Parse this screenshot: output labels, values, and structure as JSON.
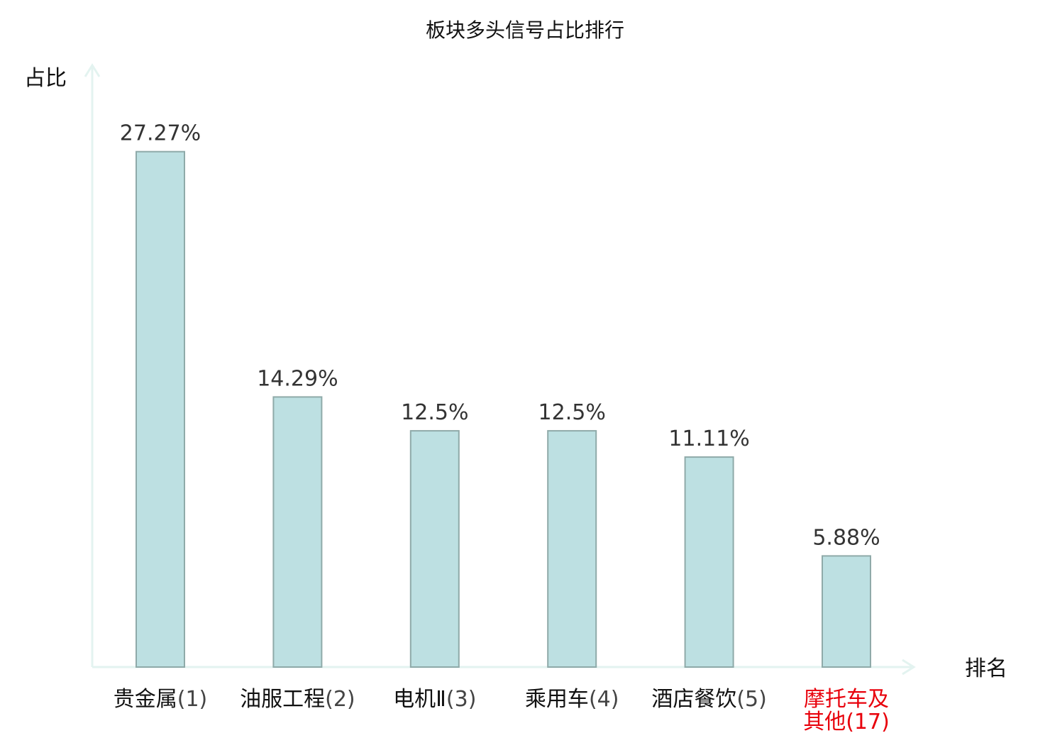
{
  "chart_data": {
    "type": "bar",
    "title": "板块多头信号占比排行",
    "ylabel": "占比",
    "xlabel": "排名",
    "categories": [
      "贵金属(1)",
      "油服工程(2)",
      "电机Ⅱ(3)",
      "乘用车(4)",
      "酒店餐饮(5)",
      "摩托车及其他(17)"
    ],
    "category_parts": [
      {
        "name_lines": [
          "贵金属"
        ],
        "rank": "(1)",
        "highlight": false
      },
      {
        "name_lines": [
          "油服工程"
        ],
        "rank": "(2)",
        "highlight": false
      },
      {
        "name_lines": [
          "电机Ⅱ"
        ],
        "rank": "(3)",
        "highlight": false
      },
      {
        "name_lines": [
          "乘用车"
        ],
        "rank": "(4)",
        "highlight": false
      },
      {
        "name_lines": [
          "酒店餐饮"
        ],
        "rank": "(5)",
        "highlight": false
      },
      {
        "name_lines": [
          "摩托车及",
          "其他"
        ],
        "rank": "(17)",
        "highlight": true
      }
    ],
    "values": [
      27.27,
      14.29,
      12.5,
      12.5,
      11.11,
      5.88
    ],
    "value_labels": [
      "27.27%",
      "14.29%",
      "12.5%",
      "12.5%",
      "11.11%",
      "5.88%"
    ],
    "ylim": [
      0,
      30
    ],
    "grid": false,
    "legend": "none",
    "colors": {
      "bar_fill": "#bde0e2",
      "bar_stroke": "#8faaa9",
      "axis": "#e3f3f0",
      "highlight_text": "#e8000b",
      "normal_text": "#111111"
    }
  }
}
